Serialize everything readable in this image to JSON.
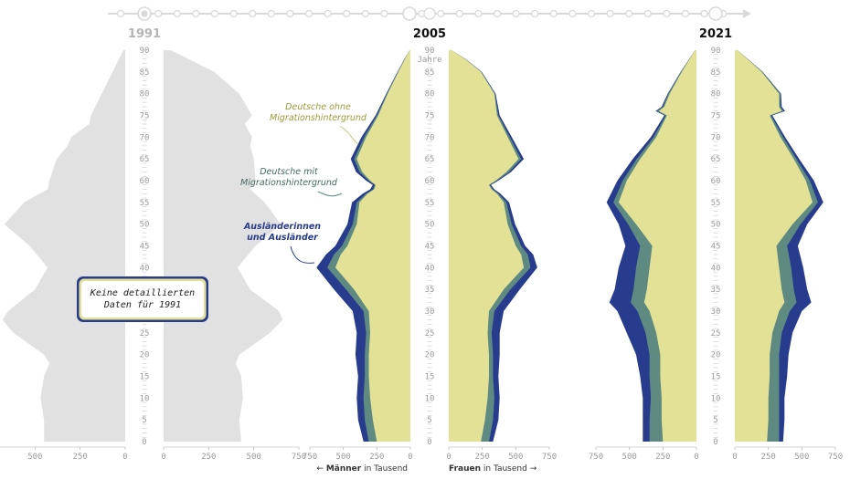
{
  "chart_data": {
    "type": "area",
    "colors": {
      "nonmig": "#E2E195",
      "mig": "#5F8A82",
      "foreign": "#283C8E",
      "grey": "#E1E1E1",
      "timeline": "#D9D9D9"
    },
    "age_axis": {
      "ticks": [
        0,
        5,
        10,
        15,
        20,
        25,
        30,
        35,
        40,
        45,
        50,
        55,
        60,
        65,
        70,
        75,
        80,
        85,
        90
      ],
      "unit_label": "Jahre"
    },
    "x_axis": {
      "range": [
        0,
        750
      ],
      "ticks": [
        750,
        500,
        250,
        0
      ],
      "ticks_right": [
        0,
        250,
        500,
        750
      ]
    },
    "axis_caption": {
      "men_arrow": "←",
      "men_bold": "Männer",
      "men_rest": " in Tausend",
      "women_bold": "Frauen",
      "women_rest": " in Tausend",
      "women_arrow": "→"
    },
    "annotations": {
      "nonmig": [
        "Deutsche ohne",
        "Migrationshintergrund"
      ],
      "mig": [
        "Deutsche mit",
        "Migrationshintergrund"
      ],
      "foreign": [
        "Ausländerinnen",
        "und Ausländer"
      ]
    },
    "note_1991": [
      "Keine detaillierten",
      "Daten für 1991"
    ],
    "panels": [
      {
        "year": "1991",
        "detailed": false,
        "ages": [
          0,
          5,
          10,
          15,
          18,
          20,
          25,
          28,
          30,
          35,
          40,
          45,
          50,
          55,
          58,
          60,
          65,
          68,
          70,
          73,
          75,
          80,
          85,
          90
        ],
        "men_total": [
          450,
          450,
          470,
          450,
          420,
          450,
          620,
          680,
          650,
          500,
          430,
          530,
          670,
          560,
          430,
          420,
          380,
          320,
          300,
          200,
          190,
          130,
          70,
          10
        ],
        "women_total": [
          430,
          420,
          440,
          430,
          400,
          420,
          590,
          660,
          640,
          480,
          410,
          510,
          650,
          560,
          480,
          510,
          500,
          480,
          490,
          450,
          490,
          420,
          280,
          40
        ]
      },
      {
        "year": "2005",
        "detailed": true,
        "ages": [
          0,
          5,
          10,
          15,
          20,
          25,
          30,
          35,
          40,
          43,
          45,
          50,
          55,
          57,
          58,
          59,
          60,
          62,
          65,
          70,
          75,
          80,
          85,
          88,
          90
        ],
        "men_nonmig": [
          250,
          280,
          300,
          310,
          310,
          300,
          310,
          420,
          560,
          520,
          470,
          400,
          380,
          320,
          270,
          260,
          300,
          360,
          400,
          330,
          240,
          170,
          90,
          40,
          5
        ],
        "men_mig": [
          60,
          60,
          50,
          30,
          30,
          30,
          40,
          60,
          60,
          50,
          40,
          30,
          20,
          10,
          10,
          5,
          10,
          20,
          20,
          15,
          10,
          5,
          3,
          2,
          0
        ],
        "men_foreign": [
          40,
          50,
          50,
          50,
          70,
          70,
          80,
          90,
          80,
          60,
          50,
          40,
          35,
          25,
          20,
          15,
          20,
          25,
          25,
          20,
          10,
          5,
          3,
          2,
          0
        ],
        "women_nonmig": [
          240,
          270,
          290,
          300,
          300,
          290,
          300,
          410,
          560,
          540,
          500,
          440,
          410,
          360,
          320,
          300,
          350,
          430,
          520,
          440,
          360,
          340,
          240,
          120,
          20
        ],
        "women_mig": [
          60,
          60,
          50,
          30,
          30,
          30,
          40,
          50,
          50,
          50,
          40,
          30,
          20,
          10,
          10,
          5,
          10,
          20,
          20,
          15,
          10,
          5,
          3,
          2,
          0
        ],
        "women_foreign": [
          30,
          40,
          40,
          40,
          50,
          60,
          70,
          70,
          50,
          40,
          30,
          25,
          20,
          15,
          10,
          10,
          10,
          15,
          20,
          15,
          10,
          5,
          3,
          2,
          0
        ]
      },
      {
        "year": "2021",
        "detailed": true,
        "ages": [
          0,
          5,
          10,
          15,
          20,
          25,
          30,
          32,
          35,
          40,
          45,
          50,
          55,
          60,
          65,
          70,
          75,
          76,
          77,
          80,
          85,
          90
        ],
        "men_nonmig": [
          250,
          260,
          260,
          270,
          270,
          300,
          350,
          390,
          370,
          350,
          330,
          450,
          580,
          520,
          420,
          300,
          220,
          280,
          240,
          200,
          110,
          10
        ],
        "men_mig": [
          100,
          90,
          80,
          80,
          80,
          80,
          90,
          100,
          100,
          100,
          90,
          60,
          40,
          30,
          25,
          20,
          10,
          15,
          10,
          10,
          5,
          0
        ],
        "men_foreign": [
          50,
          50,
          60,
          70,
          100,
          140,
          150,
          160,
          140,
          130,
          110,
          70,
          50,
          40,
          30,
          20,
          10,
          10,
          10,
          5,
          3,
          0
        ],
        "women_nonmig": [
          240,
          250,
          250,
          260,
          260,
          280,
          330,
          370,
          350,
          330,
          310,
          430,
          580,
          530,
          440,
          340,
          260,
          350,
          330,
          330,
          200,
          20
        ],
        "women_mig": [
          90,
          80,
          80,
          70,
          70,
          70,
          80,
          90,
          90,
          90,
          80,
          60,
          40,
          30,
          20,
          20,
          10,
          15,
          10,
          10,
          5,
          0
        ],
        "women_foreign": [
          30,
          40,
          40,
          60,
          70,
          80,
          90,
          110,
          100,
          90,
          80,
          50,
          40,
          30,
          20,
          15,
          10,
          10,
          10,
          5,
          3,
          0
        ]
      }
    ]
  }
}
